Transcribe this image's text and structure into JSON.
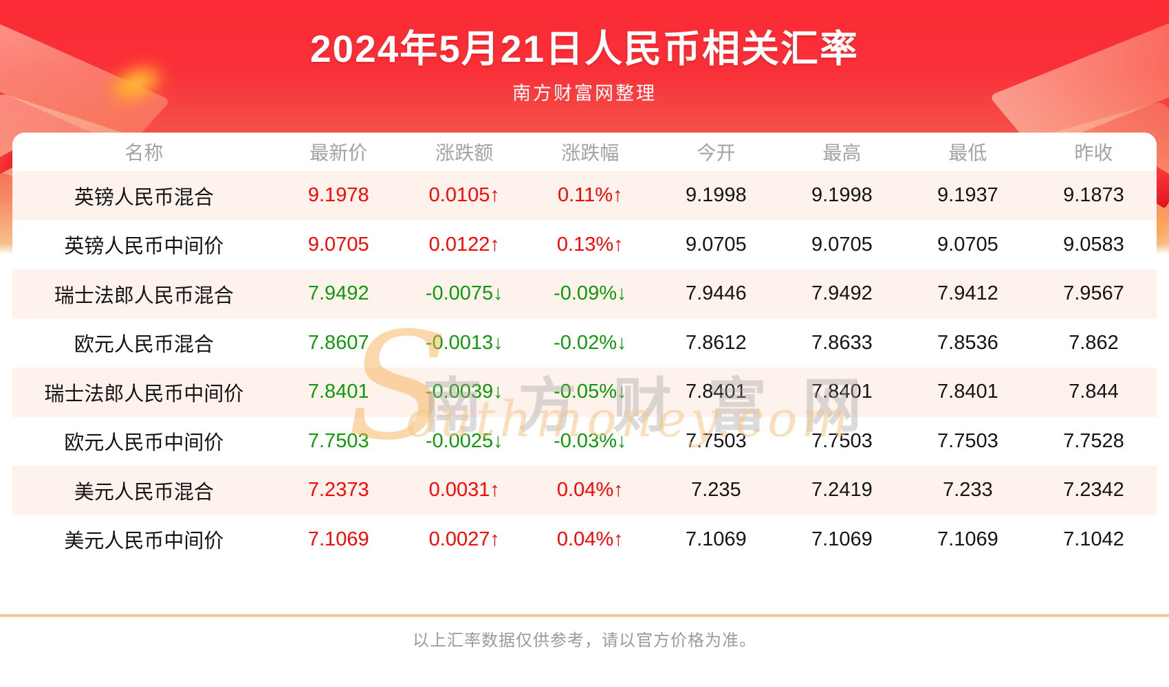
{
  "header": {
    "title": "2024年5月21日人民币相关汇率",
    "subtitle": "南方财富网整理"
  },
  "table": {
    "columns": {
      "name": "名称",
      "latest": "最新价",
      "change": "涨跌额",
      "pct": "涨跌幅",
      "open": "今开",
      "high": "最高",
      "low": "最低",
      "prev": "昨收"
    },
    "rows": [
      {
        "name": "英镑人民币混合",
        "latest": "9.1978",
        "change": "0.0105↑",
        "pct": "0.11%↑",
        "open": "9.1998",
        "high": "9.1998",
        "low": "9.1937",
        "prev": "9.1873",
        "trend": "up"
      },
      {
        "name": "英镑人民币中间价",
        "latest": "9.0705",
        "change": "0.0122↑",
        "pct": "0.13%↑",
        "open": "9.0705",
        "high": "9.0705",
        "low": "9.0705",
        "prev": "9.0583",
        "trend": "up"
      },
      {
        "name": "瑞士法郎人民币混合",
        "latest": "7.9492",
        "change": "-0.0075↓",
        "pct": "-0.09%↓",
        "open": "7.9446",
        "high": "7.9492",
        "low": "7.9412",
        "prev": "7.9567",
        "trend": "down"
      },
      {
        "name": "欧元人民币混合",
        "latest": "7.8607",
        "change": "-0.0013↓",
        "pct": "-0.02%↓",
        "open": "7.8612",
        "high": "7.8633",
        "low": "7.8536",
        "prev": "7.862",
        "trend": "down"
      },
      {
        "name": "瑞士法郎人民币中间价",
        "latest": "7.8401",
        "change": "-0.0039↓",
        "pct": "-0.05%↓",
        "open": "7.8401",
        "high": "7.8401",
        "low": "7.8401",
        "prev": "7.844",
        "trend": "down"
      },
      {
        "name": "欧元人民币中间价",
        "latest": "7.7503",
        "change": "-0.0025↓",
        "pct": "-0.03%↓",
        "open": "7.7503",
        "high": "7.7503",
        "low": "7.7503",
        "prev": "7.7528",
        "trend": "down"
      },
      {
        "name": "美元人民币混合",
        "latest": "7.2373",
        "change": "0.0031↑",
        "pct": "0.04%↑",
        "open": "7.235",
        "high": "7.2419",
        "low": "7.233",
        "prev": "7.2342",
        "trend": "up"
      },
      {
        "name": "美元人民币中间价",
        "latest": "7.1069",
        "change": "0.0027↑",
        "pct": "0.04%↑",
        "open": "7.1069",
        "high": "7.1069",
        "low": "7.1069",
        "prev": "7.1042",
        "trend": "up"
      }
    ]
  },
  "watermark": {
    "initial": "S",
    "cn": "南方财富网",
    "en": "outhmoney.com"
  },
  "footer": {
    "note": "以上汇率数据仅供参考，请以官方价格为准。"
  },
  "colors": {
    "up": "#fb0505",
    "down": "#0f9909",
    "banner_top": "#fb2a33",
    "banner_bottom": "#f9c08c",
    "row_alt": "#fdf3ec",
    "divider": "#f5c793"
  }
}
